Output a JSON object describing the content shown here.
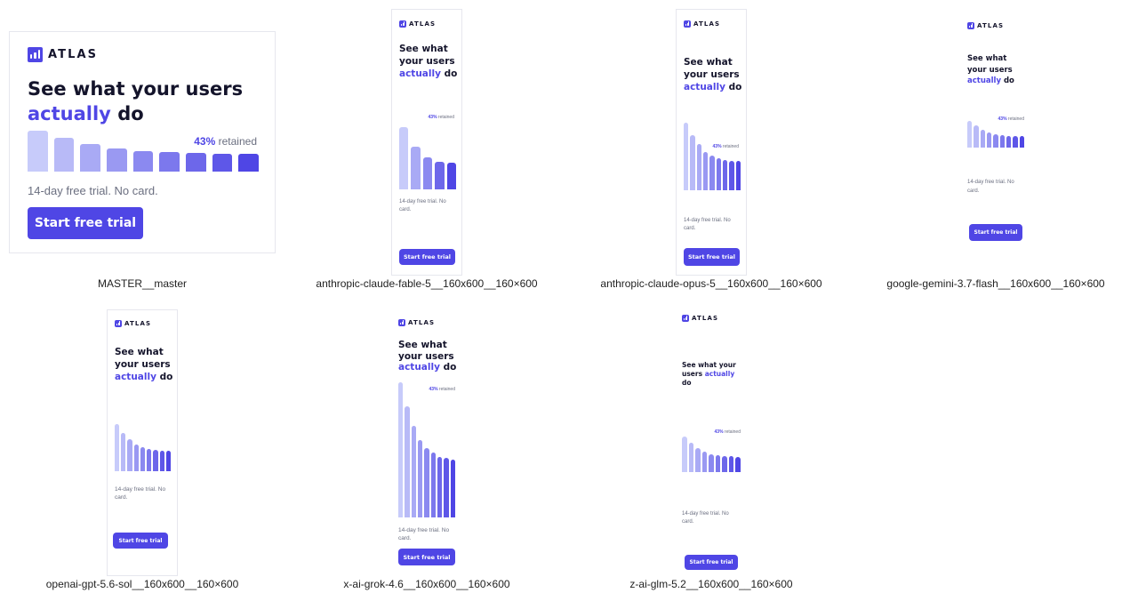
{
  "ad_copy": {
    "brand": "ATLAS",
    "headline_pre": "See what your users",
    "headline_accent": "actually",
    "headline_post": "do",
    "stat_value": "43%",
    "stat_label": "retained",
    "trial_line": "14-day free trial. No card.",
    "cta_label": "Start free trial"
  },
  "colors": {
    "accent": "#4f46e5",
    "bar_light": "#c7cbfa",
    "bar_dark": "#4f46e5",
    "text": "#14142b",
    "muted": "#6b6f80"
  },
  "retention_bars": [
    1.0,
    0.82,
    0.68,
    0.57,
    0.51,
    0.48,
    0.45,
    0.44,
    0.43
  ],
  "variants": [
    {
      "caption": "MASTER__master"
    },
    {
      "caption": "anthropic-claude-fable-5__160x600__160×600"
    },
    {
      "caption": "anthropic-claude-opus-5__160x600__160×600"
    },
    {
      "caption": "google-gemini-3.7-flash__160x600__160×600"
    },
    {
      "caption": "openai-gpt-5.6-sol__160x600__160×600"
    },
    {
      "caption": "x-ai-grok-4.6__160x600__160×600"
    },
    {
      "caption": "z-ai-glm-5.2__160x600__160×600"
    }
  ]
}
